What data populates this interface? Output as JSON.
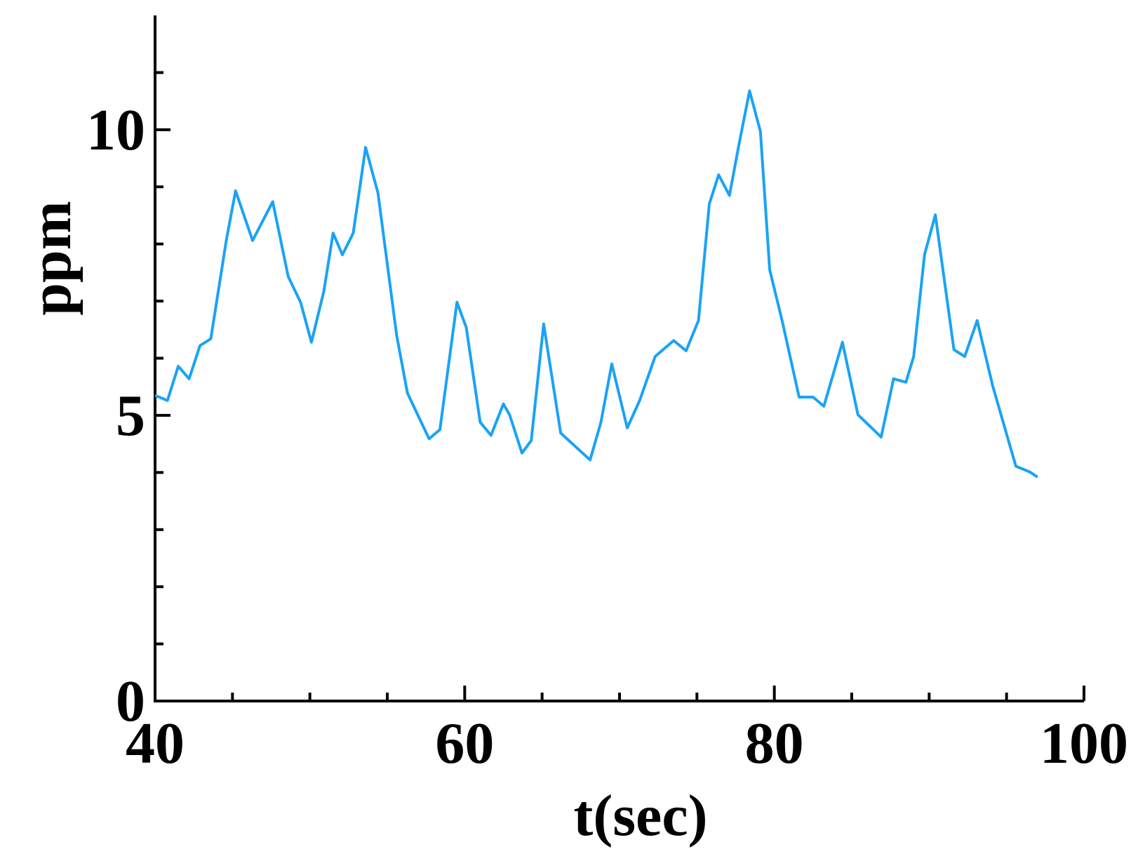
{
  "chart_data": {
    "type": "line",
    "x_label": "t(sec)",
    "y_label": "ppm",
    "xlim": [
      40,
      100
    ],
    "ylim": [
      0,
      12
    ],
    "xticks": [
      40,
      60,
      80,
      100
    ],
    "yticks": [
      0,
      5,
      10
    ],
    "xminorticks": [
      45,
      50,
      55,
      65,
      70,
      75,
      85,
      90,
      95
    ],
    "yminorticks": [
      1,
      2,
      3,
      4,
      6,
      7,
      8,
      9,
      11
    ],
    "x": [
      40,
      40.8,
      41.5,
      42.2,
      42.9,
      43.6,
      44.6,
      45.2,
      46.3,
      47.6,
      48.6,
      49.4,
      50.1,
      50.9,
      51.5,
      52.1,
      52.8,
      53.6,
      54.4,
      55.6,
      56.3,
      57.7,
      58.4,
      59.5,
      60.1,
      61.0,
      61.7,
      62.5,
      62.9,
      63.7,
      64.3,
      65.1,
      66.2,
      68.1,
      68.8,
      69.5,
      70.5,
      71.3,
      72.3,
      73.5,
      74.3,
      75.1,
      75.8,
      76.4,
      77.1,
      77.7,
      78.4,
      79.1,
      79.7,
      80.5,
      81.6,
      82.5,
      83.2,
      84.4,
      85.4,
      86.9,
      87.7,
      88.5,
      89.0,
      89.7,
      90.4,
      91.6,
      92.3,
      93.1,
      94.1,
      95.6,
      96.5,
      97.0
    ],
    "series": [
      {
        "color": "#1aa3f5",
        "values": [
          5.35,
          5.26,
          5.86,
          5.64,
          6.22,
          6.34,
          8.06,
          8.93,
          8.06,
          8.74,
          7.43,
          6.98,
          6.28,
          7.17,
          8.19,
          7.81,
          8.19,
          9.69,
          8.89,
          6.41,
          5.39,
          4.59,
          4.75,
          6.98,
          6.54,
          4.88,
          4.65,
          5.2,
          5.01,
          4.34,
          4.56,
          6.6,
          4.69,
          4.22,
          4.88,
          5.9,
          4.78,
          5.26,
          6.03,
          6.31,
          6.13,
          6.66,
          8.7,
          9.21,
          8.85,
          9.72,
          10.68,
          9.97,
          7.55,
          6.66,
          5.32,
          5.32,
          5.16,
          6.28,
          5.01,
          4.62,
          5.64,
          5.58,
          6.03,
          7.81,
          8.51,
          6.15,
          6.03,
          6.66,
          5.52,
          4.11,
          4.01,
          3.92
        ]
      }
    ]
  }
}
